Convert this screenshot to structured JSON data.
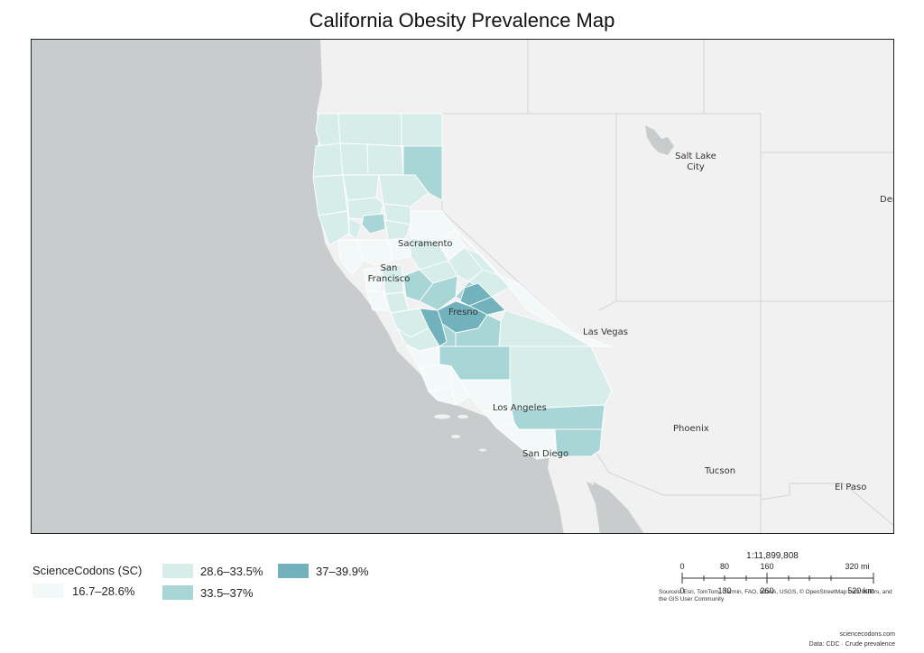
{
  "title": "California Obesity Prevalence Map",
  "map": {
    "region": "California",
    "measure": "Obesity prevalence",
    "cities": [
      {
        "name": "Salt Lake City",
        "lines": [
          "Salt Lake",
          "City"
        ]
      },
      {
        "name": "Denver",
        "lines": [
          "Denver"
        ]
      },
      {
        "name": "Sacramento",
        "lines": [
          "Sacramento"
        ]
      },
      {
        "name": "San Francisco",
        "lines": [
          "San",
          "Francisco"
        ]
      },
      {
        "name": "Fresno",
        "lines": [
          "Fresno"
        ]
      },
      {
        "name": "Las Vegas",
        "lines": [
          "Las Vegas"
        ]
      },
      {
        "name": "Los Angeles",
        "lines": [
          "Los Angeles"
        ]
      },
      {
        "name": "Phoenix",
        "lines": [
          "Phoenix"
        ]
      },
      {
        "name": "San Diego",
        "lines": [
          "San Diego"
        ]
      },
      {
        "name": "Tucson",
        "lines": [
          "Tucson"
        ]
      },
      {
        "name": "El Paso",
        "lines": [
          "El Paso"
        ]
      }
    ],
    "colors": {
      "ocean": "#c9cccd",
      "land": "#f1f1f1",
      "border": "#d8d8d8",
      "county_border": "#ffffff"
    }
  },
  "legend": {
    "title": "ScienceCodons (SC)",
    "classes": [
      {
        "label": "16.7–28.6%",
        "color": "#f2f9f8"
      },
      {
        "label": "28.6–33.5%",
        "color": "#d6ede9"
      },
      {
        "label": "33.5–37%",
        "color": "#a8d5d5"
      },
      {
        "label": "37–39.9%",
        "color": "#72b2bc"
      }
    ]
  },
  "scale": {
    "ratio": "1:11,899,808",
    "mi_ticks": [
      "0",
      "80",
      "160",
      "320 mi"
    ],
    "km_ticks": [
      "0",
      "130",
      "260",
      "520 km"
    ]
  },
  "sources": "Sources: Esri, TomTom, Garmin, FAO, NOAA, USGS, © OpenStreetMap contributors, and the GIS User Community",
  "credits": {
    "site": "sciencecodons.com",
    "data": "Data: CDC · Crude prevalence"
  }
}
